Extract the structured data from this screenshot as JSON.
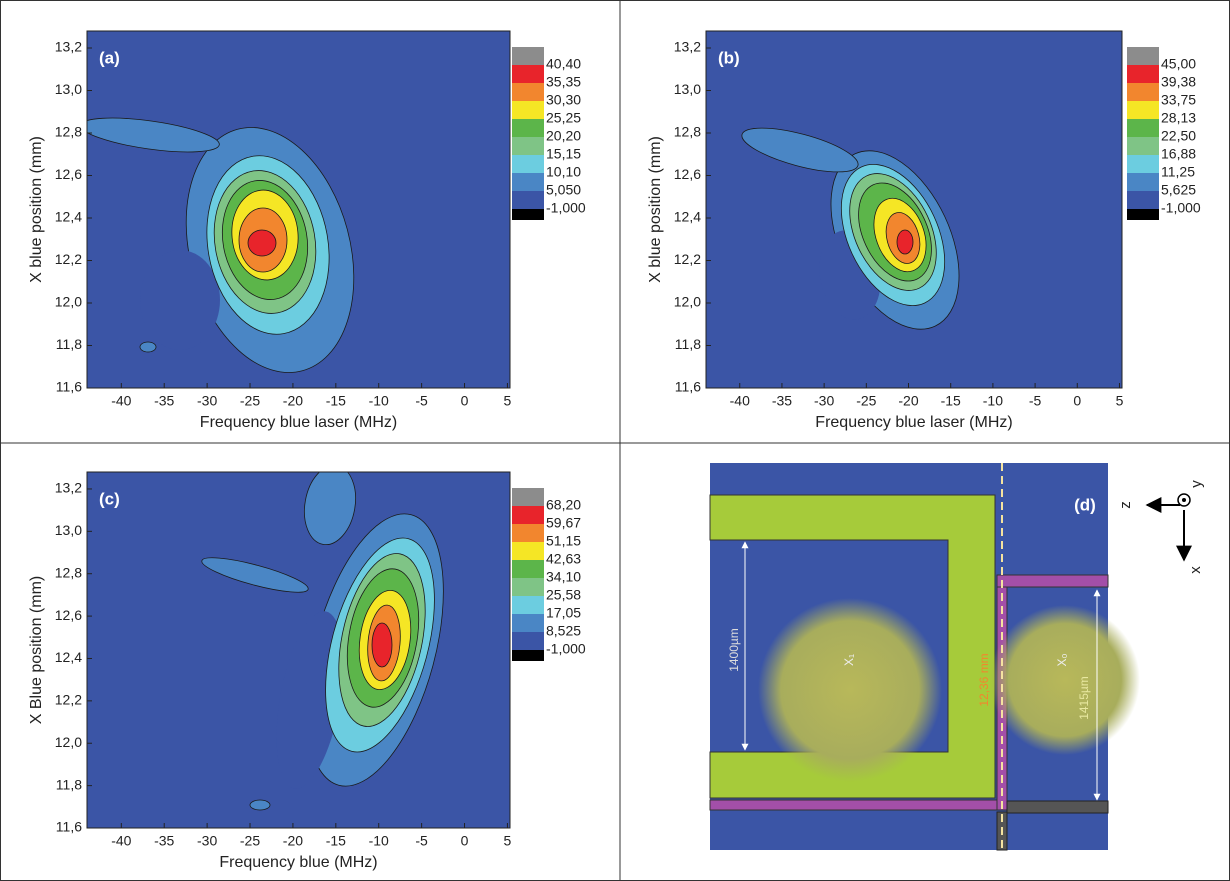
{
  "chart_data": [
    {
      "type": "contour",
      "panel_label": "(a)",
      "x_label": "Frequency blue laser (MHz)",
      "y_label": "X blue position (mm)",
      "xlim": [
        -44,
        5.3
      ],
      "xticks": [
        -40,
        -35,
        -30,
        -25,
        -20,
        -15,
        -10,
        -5,
        0,
        5
      ],
      "ylim": [
        11.6,
        13.28
      ],
      "yticks": [
        {
          "value": 11.6,
          "label": "11,6"
        },
        {
          "value": 11.8,
          "label": "11,8"
        },
        {
          "value": 12.0,
          "label": "12,0"
        },
        {
          "value": 12.2,
          "label": "12,2"
        },
        {
          "value": 12.4,
          "label": "12,4"
        },
        {
          "value": 12.6,
          "label": "12,6"
        },
        {
          "value": 12.8,
          "label": "12,8"
        },
        {
          "value": 13.0,
          "label": "13,0"
        },
        {
          "value": 13.2,
          "label": "13,2"
        }
      ],
      "levels": [
        {
          "value": 40.4,
          "label": "40,40"
        },
        {
          "value": 35.35,
          "label": "35,35"
        },
        {
          "value": 30.3,
          "label": "30,30"
        },
        {
          "value": 25.25,
          "label": "25,25"
        },
        {
          "value": 20.2,
          "label": "20,20"
        },
        {
          "value": 15.15,
          "label": "15,15"
        },
        {
          "value": 10.1,
          "label": "10,10"
        },
        {
          "value": 5.05,
          "label": "5,050"
        },
        {
          "value": -1,
          "label": "-1,000"
        }
      ],
      "colors": [
        "#8c8c8c",
        "#e8242b",
        "#f2862e",
        "#f5e625",
        "#5cb54a",
        "#7fc486",
        "#6ccde0",
        "#4a86c5",
        "#3b55a6",
        "#000000"
      ]
    },
    {
      "type": "contour",
      "panel_label": "(b)",
      "x_label": "Frequency blue laser (MHz)",
      "y_label": "X blue position (mm)",
      "xlim": [
        -44,
        5.3
      ],
      "xticks": [
        -40,
        -35,
        -30,
        -25,
        -20,
        -15,
        -10,
        -5,
        0,
        5
      ],
      "ylim": [
        11.6,
        13.28
      ],
      "yticks": [
        {
          "value": 11.6,
          "label": "11,6"
        },
        {
          "value": 11.8,
          "label": "11,8"
        },
        {
          "value": 12.0,
          "label": "12,0"
        },
        {
          "value": 12.2,
          "label": "12,2"
        },
        {
          "value": 12.4,
          "label": "12,4"
        },
        {
          "value": 12.6,
          "label": "12,6"
        },
        {
          "value": 12.8,
          "label": "12,8"
        },
        {
          "value": 13.0,
          "label": "13,0"
        },
        {
          "value": 13.2,
          "label": "13,2"
        }
      ],
      "levels": [
        {
          "value": 45,
          "label": "45,00"
        },
        {
          "value": 39.38,
          "label": "39,38"
        },
        {
          "value": 33.75,
          "label": "33,75"
        },
        {
          "value": 28.13,
          "label": "28,13"
        },
        {
          "value": 22.5,
          "label": "22,50"
        },
        {
          "value": 16.88,
          "label": "16,88"
        },
        {
          "value": 11.25,
          "label": "11,25"
        },
        {
          "value": 5.625,
          "label": "5,625"
        },
        {
          "value": -1,
          "label": "-1,000"
        }
      ],
      "colors": [
        "#8c8c8c",
        "#e8242b",
        "#f2862e",
        "#f5e625",
        "#5cb54a",
        "#7fc486",
        "#6ccde0",
        "#4a86c5",
        "#3b55a6",
        "#000000"
      ]
    },
    {
      "type": "contour",
      "panel_label": "(c)",
      "x_label": "Frequency blue (MHz)",
      "y_label": "X Blue position (mm)",
      "xlim": [
        -44,
        5.3
      ],
      "xticks": [
        -40,
        -35,
        -30,
        -25,
        -20,
        -15,
        -10,
        -5,
        0,
        5
      ],
      "ylim": [
        11.6,
        13.28
      ],
      "yticks": [
        {
          "value": 11.6,
          "label": "11,6"
        },
        {
          "value": 11.8,
          "label": "11,8"
        },
        {
          "value": 12.0,
          "label": "12,0"
        },
        {
          "value": 12.2,
          "label": "12,2"
        },
        {
          "value": 12.4,
          "label": "12,4"
        },
        {
          "value": 12.6,
          "label": "12,6"
        },
        {
          "value": 12.8,
          "label": "12,8"
        },
        {
          "value": 13.0,
          "label": "13,0"
        },
        {
          "value": 13.2,
          "label": "13,2"
        }
      ],
      "levels": [
        {
          "value": 68.2,
          "label": "68,20"
        },
        {
          "value": 59.67,
          "label": "59,67"
        },
        {
          "value": 51.15,
          "label": "51,15"
        },
        {
          "value": 42.63,
          "label": "42,63"
        },
        {
          "value": 34.1,
          "label": "34,10"
        },
        {
          "value": 25.58,
          "label": "25,58"
        },
        {
          "value": 17.05,
          "label": "17,05"
        },
        {
          "value": 8.525,
          "label": "8,525"
        },
        {
          "value": -1,
          "label": "-1,000"
        }
      ],
      "colors": [
        "#8c8c8c",
        "#e8242b",
        "#f2862e",
        "#f5e625",
        "#5cb54a",
        "#7fc486",
        "#6ccde0",
        "#4a86c5",
        "#3b55a6",
        "#000000"
      ]
    }
  ],
  "diagram": {
    "panel_label": "(d)",
    "width_left": "1400µm",
    "spot_left": "X₁",
    "position": "12,36 mm",
    "spot_right": "X₀",
    "width_right": "1415µm",
    "axis_z": "z",
    "axis_y": "y",
    "axis_x": "x"
  }
}
